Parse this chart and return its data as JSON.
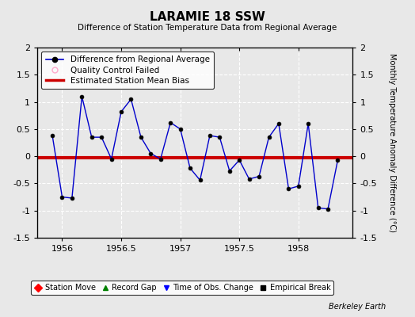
{
  "title": "LARAMIE 18 SSW",
  "subtitle": "Difference of Station Temperature Data from Regional Average",
  "ylabel": "Monthly Temperature Anomaly Difference (°C)",
  "credit": "Berkeley Earth",
  "xlim": [
    1955.79,
    1958.46
  ],
  "ylim": [
    -1.5,
    2.0
  ],
  "yticks": [
    -1.5,
    -1.0,
    -0.5,
    0.0,
    0.5,
    1.0,
    1.5,
    2.0
  ],
  "yticklabels": [
    "-1.5",
    "-1",
    "-0.5",
    "0",
    "0.5",
    "1",
    "1.5",
    "2"
  ],
  "xticks": [
    1956.0,
    1956.5,
    1957.0,
    1957.5,
    1958.0
  ],
  "xticklabels": [
    "1956",
    "1956.5",
    "1957",
    "1957.5",
    "1958"
  ],
  "bias_value": -0.02,
  "background_color": "#e8e8e8",
  "plot_bg_color": "#e8e8e8",
  "line_color": "#0000cc",
  "bias_color": "#cc0000",
  "data_x": [
    1955.917,
    1956.0,
    1956.083,
    1956.167,
    1956.25,
    1956.333,
    1956.417,
    1956.5,
    1956.583,
    1956.667,
    1956.75,
    1956.833,
    1956.917,
    1957.0,
    1957.083,
    1957.167,
    1957.25,
    1957.333,
    1957.417,
    1957.5,
    1957.583,
    1957.667,
    1957.75,
    1957.833,
    1957.917,
    1958.0,
    1958.083,
    1958.167,
    1958.25,
    1958.333
  ],
  "data_y": [
    0.38,
    -0.75,
    -0.77,
    1.1,
    0.35,
    0.35,
    -0.05,
    0.82,
    1.05,
    0.35,
    0.05,
    -0.05,
    0.62,
    0.5,
    -0.22,
    -0.44,
    0.38,
    0.35,
    -0.27,
    -0.07,
    -0.42,
    -0.37,
    0.35,
    0.6,
    -0.6,
    -0.55,
    0.6,
    -0.95,
    -0.97,
    -0.07
  ],
  "marker_color": "#000000",
  "marker_size": 3.5,
  "grid_color": "#ffffff",
  "qc_color": "#ffaacc"
}
